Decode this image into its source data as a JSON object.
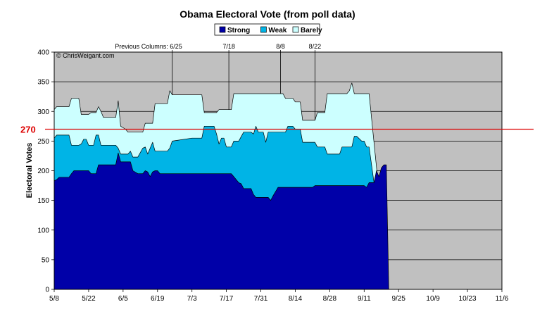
{
  "chart_data": {
    "type": "area",
    "title": "Obama Electoral Vote (from poll data)",
    "subtitle": "",
    "ylabel": "Electoral Votes",
    "xlabel": "",
    "ylim": [
      0,
      400
    ],
    "yticks": [
      0,
      50,
      100,
      150,
      200,
      250,
      300,
      350,
      400
    ],
    "x_tick_labels": [
      "5/8",
      "5/22",
      "6/5",
      "6/19",
      "7/3",
      "7/17",
      "7/31",
      "8/14",
      "8/28",
      "9/11",
      "9/25",
      "10/9",
      "10/23",
      "11/6"
    ],
    "x_range_days": [
      0,
      182
    ],
    "stacked": true,
    "grid": true,
    "legend_position": "top",
    "copyright": "© ChrisWeigant.com",
    "reference_line": {
      "value": 270,
      "label": "270",
      "color": "#dd0000"
    },
    "annotations": [
      {
        "text": "Previous Columns: 6/25",
        "day": 48
      },
      {
        "text": "7/18",
        "day": 71
      },
      {
        "text": "8/8",
        "day": 92
      },
      {
        "text": "8/22",
        "day": 106
      }
    ],
    "colors": {
      "plot_background": "#c0c0c0",
      "strong": "#0000a8",
      "weak": "#00b4e6",
      "barely": "#ccffff"
    },
    "series": [
      {
        "name": "Strong",
        "color": "#0000a8",
        "points": [
          [
            0,
            183
          ],
          [
            1,
            185
          ],
          [
            2,
            189
          ],
          [
            6,
            189
          ],
          [
            7,
            195
          ],
          [
            8,
            200
          ],
          [
            14,
            200
          ],
          [
            15,
            195
          ],
          [
            17,
            195
          ],
          [
            18,
            210
          ],
          [
            25,
            210
          ],
          [
            26,
            230
          ],
          [
            27,
            215
          ],
          [
            31,
            215
          ],
          [
            32,
            200
          ],
          [
            34,
            195
          ],
          [
            36,
            195
          ],
          [
            37,
            200
          ],
          [
            38,
            198
          ],
          [
            39,
            190
          ],
          [
            40,
            198
          ],
          [
            41,
            200
          ],
          [
            42,
            200
          ],
          [
            43,
            195
          ],
          [
            72,
            195
          ],
          [
            73,
            190
          ],
          [
            75,
            180
          ],
          [
            76,
            178
          ],
          [
            77,
            170
          ],
          [
            80,
            170
          ],
          [
            81,
            160
          ],
          [
            82,
            155
          ],
          [
            87,
            155
          ],
          [
            88,
            150
          ],
          [
            89,
            158
          ],
          [
            90,
            165
          ],
          [
            91,
            172
          ],
          [
            105,
            172
          ],
          [
            106,
            175
          ],
          [
            126,
            175
          ],
          [
            127,
            172
          ],
          [
            128,
            180
          ],
          [
            130,
            180
          ],
          [
            131,
            200
          ],
          [
            132,
            190
          ],
          [
            133,
            205
          ],
          [
            134,
            210
          ],
          [
            135,
            210
          ],
          [
            136,
            0
          ]
        ]
      },
      {
        "name": "Weak",
        "color": "#00b4e6",
        "points": [
          [
            0,
            255
          ],
          [
            1,
            260
          ],
          [
            6,
            260
          ],
          [
            7,
            243
          ],
          [
            10,
            243
          ],
          [
            11,
            245
          ],
          [
            12,
            253
          ],
          [
            13,
            253
          ],
          [
            14,
            243
          ],
          [
            16,
            243
          ],
          [
            17,
            260
          ],
          [
            18,
            260
          ],
          [
            19,
            243
          ],
          [
            25,
            243
          ],
          [
            26,
            238
          ],
          [
            27,
            228
          ],
          [
            30,
            228
          ],
          [
            31,
            233
          ],
          [
            32,
            223
          ],
          [
            34,
            223
          ],
          [
            36,
            238
          ],
          [
            37,
            240
          ],
          [
            38,
            228
          ],
          [
            40,
            248
          ],
          [
            41,
            233
          ],
          [
            46,
            233
          ],
          [
            47,
            238
          ],
          [
            48,
            250
          ],
          [
            56,
            255
          ],
          [
            60,
            255
          ],
          [
            61,
            275
          ],
          [
            65,
            275
          ],
          [
            66,
            262
          ],
          [
            67,
            245
          ],
          [
            68,
            255
          ],
          [
            69,
            255
          ],
          [
            70,
            240
          ],
          [
            72,
            240
          ],
          [
            73,
            250
          ],
          [
            75,
            250
          ],
          [
            77,
            265
          ],
          [
            80,
            265
          ],
          [
            81,
            262
          ],
          [
            82,
            275
          ],
          [
            83,
            265
          ],
          [
            85,
            265
          ],
          [
            86,
            248
          ],
          [
            87,
            265
          ],
          [
            94,
            265
          ],
          [
            95,
            275
          ],
          [
            97,
            275
          ],
          [
            98,
            270
          ],
          [
            100,
            270
          ],
          [
            101,
            248
          ],
          [
            106,
            248
          ],
          [
            107,
            240
          ],
          [
            110,
            240
          ],
          [
            111,
            228
          ],
          [
            116,
            228
          ],
          [
            117,
            240
          ],
          [
            121,
            240
          ],
          [
            122,
            258
          ],
          [
            123,
            258
          ],
          [
            125,
            250
          ],
          [
            126,
            250
          ],
          [
            127,
            240
          ],
          [
            128,
            240
          ],
          [
            136,
            0
          ]
        ]
      },
      {
        "name": "Barely",
        "color": "#ccffff",
        "points": [
          [
            0,
            303
          ],
          [
            1,
            308
          ],
          [
            6,
            308
          ],
          [
            7,
            322
          ],
          [
            10,
            322
          ],
          [
            11,
            295
          ],
          [
            14,
            295
          ],
          [
            15,
            298
          ],
          [
            17,
            298
          ],
          [
            18,
            308
          ],
          [
            19,
            300
          ],
          [
            20,
            290
          ],
          [
            25,
            290
          ],
          [
            26,
            318
          ],
          [
            27,
            275
          ],
          [
            29,
            270
          ],
          [
            30,
            265
          ],
          [
            36,
            265
          ],
          [
            37,
            280
          ],
          [
            40,
            280
          ],
          [
            41,
            313
          ],
          [
            46,
            313
          ],
          [
            47,
            335
          ],
          [
            48,
            328
          ],
          [
            60,
            328
          ],
          [
            61,
            298
          ],
          [
            66,
            298
          ],
          [
            67,
            303
          ],
          [
            72,
            303
          ],
          [
            73,
            330
          ],
          [
            79,
            330
          ],
          [
            90,
            330
          ],
          [
            93,
            330
          ],
          [
            94,
            322
          ],
          [
            97,
            322
          ],
          [
            98,
            316
          ],
          [
            100,
            316
          ],
          [
            101,
            285
          ],
          [
            106,
            285
          ],
          [
            107,
            298
          ],
          [
            110,
            298
          ],
          [
            111,
            330
          ],
          [
            119,
            330
          ],
          [
            120,
            335
          ],
          [
            121,
            348
          ],
          [
            122,
            330
          ],
          [
            127,
            330
          ],
          [
            128,
            330
          ],
          [
            136,
            0
          ]
        ]
      }
    ]
  }
}
